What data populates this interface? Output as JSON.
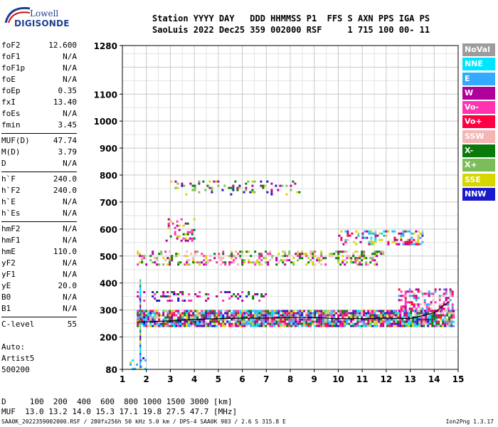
{
  "logo": {
    "line1": "Lowell",
    "line2": "DIGISONDE"
  },
  "header": {
    "line1": "Station YYYY DAY   DDD HHMMSS P1  FFS S AXN PPS IGA PS",
    "line2": "SaoLuis 2022 Dec25 359 002000 RSF     1 715 100 00- 11"
  },
  "params": [
    [
      {
        "name": "foF2",
        "value": "12.600"
      },
      {
        "name": "foF1",
        "value": "N/A"
      },
      {
        "name": "foF1p",
        "value": "N/A"
      },
      {
        "name": "foE",
        "value": "N/A"
      },
      {
        "name": "foEp",
        "value": "0.35"
      },
      {
        "name": "fxI",
        "value": "13.40"
      },
      {
        "name": "foEs",
        "value": "N/A"
      },
      {
        "name": "fmin",
        "value": "3.45"
      }
    ],
    [
      {
        "name": "MUF(D)",
        "value": "47.74"
      },
      {
        "name": "M(D)",
        "value": "3.79"
      },
      {
        "name": "D",
        "value": "N/A"
      }
    ],
    [
      {
        "name": "h`F",
        "value": "240.0"
      },
      {
        "name": "h`F2",
        "value": "240.0"
      },
      {
        "name": "h`E",
        "value": "N/A"
      },
      {
        "name": "h`Es",
        "value": "N/A"
      }
    ],
    [
      {
        "name": "hmF2",
        "value": "N/A"
      },
      {
        "name": "hmF1",
        "value": "N/A"
      },
      {
        "name": "hmE",
        "value": "110.0"
      },
      {
        "name": "yF2",
        "value": "N/A"
      },
      {
        "name": "yF1",
        "value": "N/A"
      },
      {
        "name": "yE",
        "value": "20.0"
      },
      {
        "name": "B0",
        "value": "N/A"
      },
      {
        "name": "B1",
        "value": "N/A"
      }
    ],
    [
      {
        "name": "C-level",
        "value": "55"
      }
    ]
  ],
  "auto": {
    "line1": "Auto:",
    "line2": "Artist5",
    "line3": "500200"
  },
  "muf_table": {
    "line1": "D     100  200  400  600  800 1000 1500 3000 [km]",
    "line2": "MUF  13.0 13.2 14.0 15.3 17.1 19.8 27.5 47.7 [MHz]"
  },
  "footer": "SAA0K_2022359002000.RSF / 280fx256h 50 kHz 5.0 km / DPS-4 SAA0K 903 / 2.6 S 315.8 E",
  "version": "Ion2Png 1.3.17",
  "legend": [
    {
      "label": "NoVal",
      "color": "#9c9c9c"
    },
    {
      "label": "NNE",
      "color": "#00e5ff"
    },
    {
      "label": "E",
      "color": "#33aaff"
    },
    {
      "label": "W",
      "color": "#b0009c"
    },
    {
      "label": "Vo-",
      "color": "#ff33b0"
    },
    {
      "label": "Vo+",
      "color": "#ff0044"
    },
    {
      "label": "SSW",
      "color": "#f5b5b5"
    },
    {
      "label": "X-",
      "color": "#0a7a0a"
    },
    {
      "label": "X+",
      "color": "#7cbd5a"
    },
    {
      "label": "SSE",
      "color": "#d6d600"
    },
    {
      "label": "NNW",
      "color": "#1a1acc"
    }
  ],
  "chart_data": {
    "type": "scatter",
    "title": "",
    "xlabel": "",
    "ylabel": "",
    "xlim": [
      1,
      15
    ],
    "ylim": [
      80,
      1280
    ],
    "x_ticks": [
      1,
      2,
      3,
      4,
      5,
      6,
      7,
      8,
      9,
      10,
      11,
      12,
      13,
      14,
      15
    ],
    "y_ticks": [
      80,
      200,
      300,
      400,
      500,
      600,
      700,
      800,
      900,
      1000,
      1100,
      1280
    ],
    "grid": true,
    "legend_position": "right",
    "trace": {
      "name": "",
      "x": [
        1.6,
        2.0,
        2.5,
        3.0,
        3.5,
        4.0,
        5.0,
        6.0,
        7.0,
        8.0,
        9.0,
        10.0,
        11.0,
        12.0,
        13.0,
        14.0,
        14.6
      ],
      "y": [
        255,
        256,
        258,
        260,
        262,
        265,
        268,
        270,
        270,
        272,
        272,
        268,
        268,
        270,
        268,
        290,
        330
      ]
    },
    "bands": [
      {
        "name": "",
        "x_range": [
          1.6,
          14.8
        ],
        "y_range": [
          240,
          300
        ],
        "density": 0.9,
        "colors": [
          "#1a1acc",
          "#ff0044",
          "#b0009c",
          "#f5b5b5",
          "#ff33b0",
          "#33aaff",
          "#d6d600",
          "#00e5ff",
          "#0a7a0a"
        ]
      },
      {
        "name": "",
        "x_range": [
          1.6,
          12.0
        ],
        "y_range": [
          470,
          520
        ],
        "density": 0.35,
        "colors": [
          "#b0009c",
          "#ff33b0",
          "#d6d600",
          "#7cbd5a",
          "#0a7a0a",
          "#f5b5b5"
        ]
      },
      {
        "name": "",
        "x_range": [
          10.0,
          13.5
        ],
        "y_range": [
          540,
          595
        ],
        "density": 0.4,
        "colors": [
          "#ff0044",
          "#b0009c",
          "#f5b5b5",
          "#00e5ff",
          "#d6d600",
          "#33aaff"
        ]
      },
      {
        "name": "",
        "x_range": [
          1.6,
          7.0
        ],
        "y_range": [
          335,
          370
        ],
        "density": 0.3,
        "colors": [
          "#b0009c",
          "#ff33b0",
          "#1a1acc",
          "#0a7a0a"
        ]
      },
      {
        "name": "",
        "x_range": [
          3.0,
          8.5
        ],
        "y_range": [
          730,
          780
        ],
        "density": 0.2,
        "colors": [
          "#d6d600",
          "#7cbd5a",
          "#b0009c",
          "#0a7a0a",
          "#1a1acc"
        ]
      },
      {
        "name": "",
        "x_range": [
          1.3,
          2.0
        ],
        "y_range": [
          82,
          125
        ],
        "density": 0.3,
        "colors": [
          "#1a1acc",
          "#00e5ff",
          "#33aaff",
          "#d6d600"
        ]
      },
      {
        "name": "",
        "x_range": [
          12.5,
          14.8
        ],
        "y_range": [
          300,
          380
        ],
        "density": 0.45,
        "colors": [
          "#ff0044",
          "#ff33b0",
          "#f5b5b5",
          "#b0009c",
          "#33aaff"
        ]
      },
      {
        "name": "",
        "x_range": [
          2.8,
          4.0
        ],
        "y_range": [
          560,
          640
        ],
        "density": 0.25,
        "colors": [
          "#b0009c",
          "#ff33b0",
          "#d6d600",
          "#0a7a0a"
        ]
      }
    ],
    "bar_colors": [
      "#1a1acc",
      "#00e5ff",
      "#0a7a0a",
      "#d6d600",
      "#b0009c",
      "#33aaff"
    ]
  }
}
